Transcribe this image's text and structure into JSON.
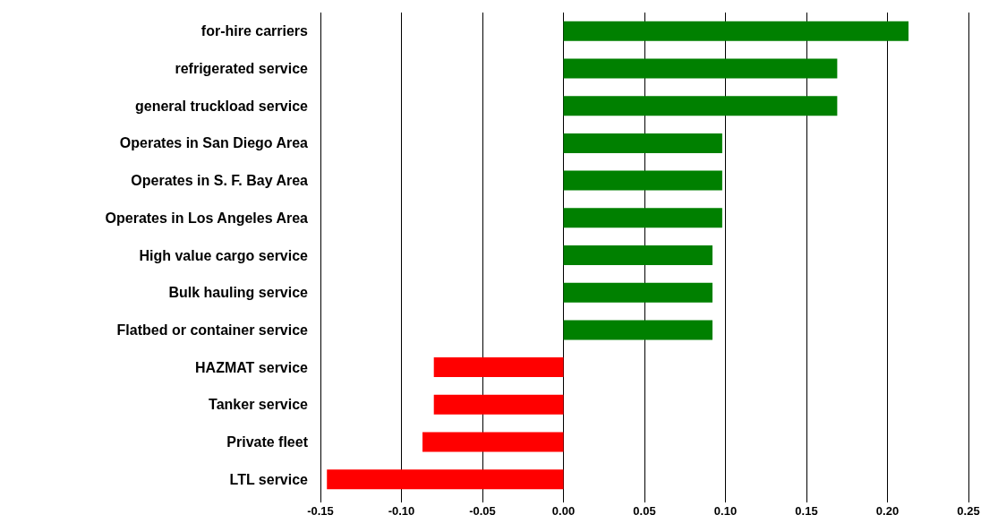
{
  "chart_data": {
    "type": "bar",
    "orientation": "horizontal",
    "categories": [
      "for-hire carriers",
      "refrigerated service",
      "general truckload service",
      "Operates in San Diego Area",
      "Operates in S. F. Bay Area",
      "Operates in Los Angeles Area",
      "High value cargo service",
      "Bulk hauling service",
      "Flatbed or container service",
      "HAZMAT service",
      "Tanker service",
      "Private fleet",
      "LTL service"
    ],
    "values": [
      0.213,
      0.169,
      0.169,
      0.098,
      0.098,
      0.098,
      0.092,
      0.092,
      0.092,
      -0.08,
      -0.08,
      -0.087,
      -0.146
    ],
    "colors": [
      "#008000",
      "#008000",
      "#008000",
      "#008000",
      "#008000",
      "#008000",
      "#008000",
      "#008000",
      "#008000",
      "#ff0000",
      "#ff0000",
      "#ff0000",
      "#ff0000"
    ],
    "xlim": [
      -0.15,
      0.25
    ],
    "xticks": [
      {
        "value": -0.15,
        "label": "-0.15"
      },
      {
        "value": -0.1,
        "label": "-0.10"
      },
      {
        "value": -0.05,
        "label": "-0.05"
      },
      {
        "value": 0,
        "label": "0.00"
      },
      {
        "value": 0.05,
        "label": "0.05"
      },
      {
        "value": 0.1,
        "label": "0.10"
      },
      {
        "value": 0.15,
        "label": "0.15"
      },
      {
        "value": 0.2,
        "label": "0.20"
      },
      {
        "value": 0.25,
        "label": "0.25"
      }
    ],
    "grid": "x"
  }
}
